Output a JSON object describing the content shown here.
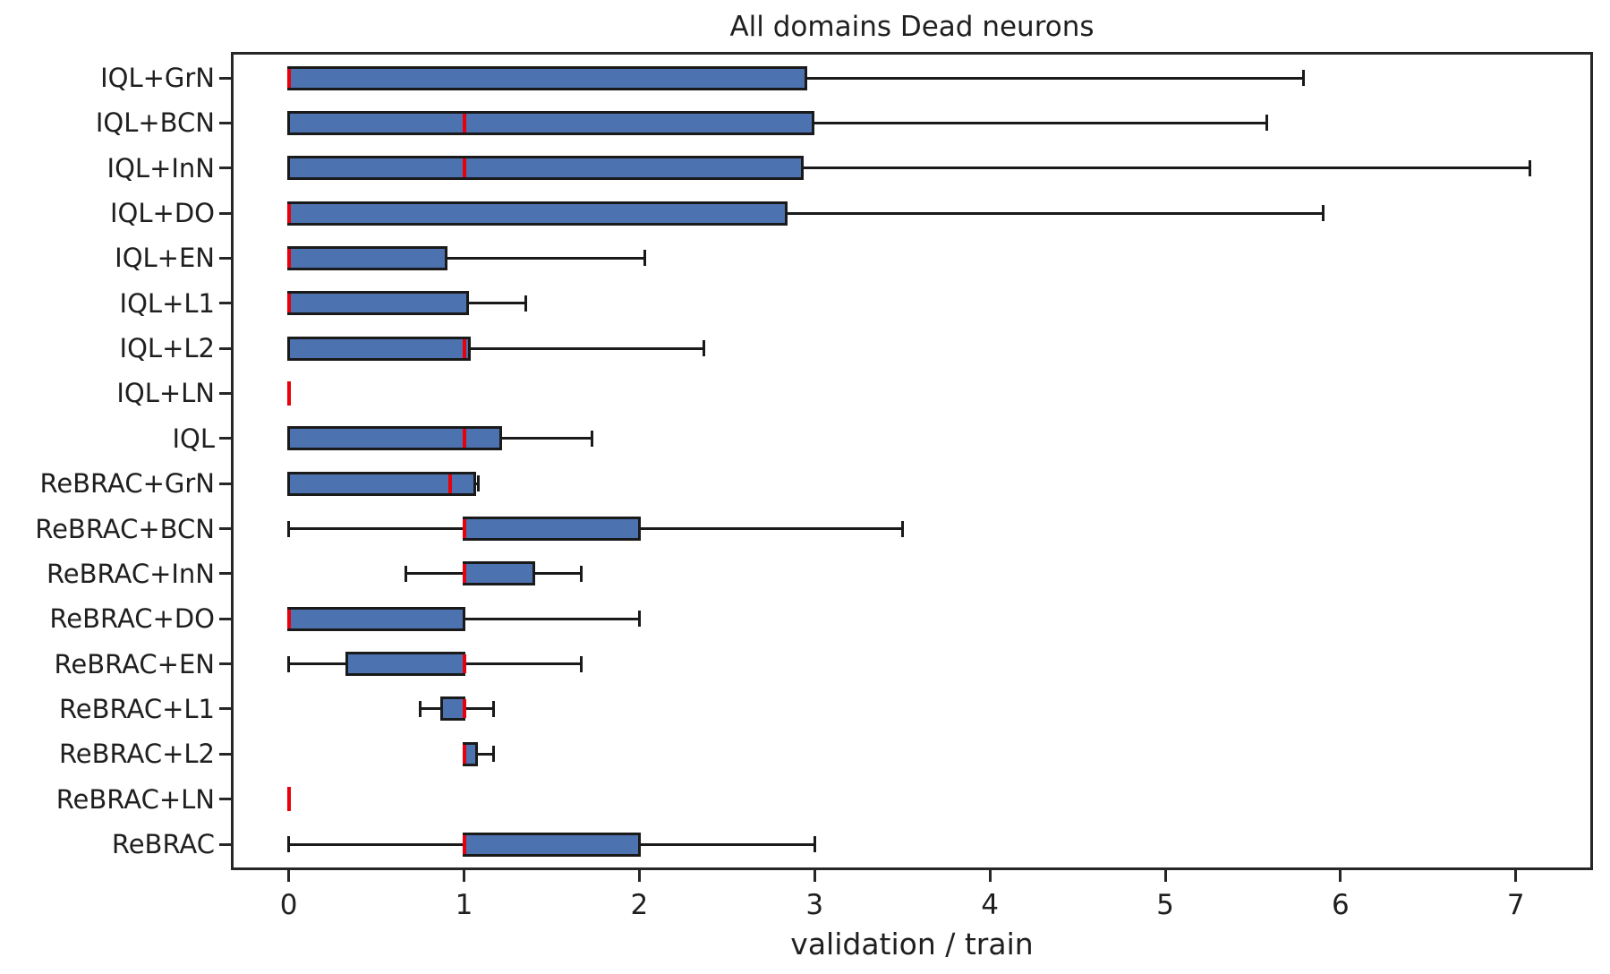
{
  "chart_data": {
    "type": "boxplot",
    "orientation": "horizontal",
    "title": "All domains Dead neurons",
    "xlabel": "validation / train",
    "ylabel": "",
    "xlim": [
      -0.33,
      7.44
    ],
    "xticks": [
      "0",
      "1",
      "2",
      "3",
      "4",
      "5",
      "6",
      "7"
    ],
    "xtick_values": [
      0,
      1,
      2,
      3,
      4,
      5,
      6,
      7
    ],
    "grid": false,
    "legend": "none",
    "box_fill_color": "#4C72B0",
    "median_color": "#e8000b",
    "edge_color": "#1a1a1a",
    "categories": [
      "IQL+GrN",
      "IQL+BCN",
      "IQL+InN",
      "IQL+DO",
      "IQL+EN",
      "IQL+L1",
      "IQL+L2",
      "IQL+LN",
      "IQL",
      "ReBRAC+GrN",
      "ReBRAC+BCN",
      "ReBRAC+InN",
      "ReBRAC+DO",
      "ReBRAC+EN",
      "ReBRAC+L1",
      "ReBRAC+L2",
      "ReBRAC+LN",
      "ReBRAC"
    ],
    "boxes": [
      {
        "label": "IQL+GrN",
        "whisker_low": 0,
        "q1": 0,
        "median": 0,
        "q3": 2.95,
        "whisker_high": 5.79
      },
      {
        "label": "IQL+BCN",
        "whisker_low": 0,
        "q1": 0,
        "median": 1.0,
        "q3": 2.99,
        "whisker_high": 5.58
      },
      {
        "label": "IQL+InN",
        "whisker_low": 0,
        "q1": 0,
        "median": 1.0,
        "q3": 2.93,
        "whisker_high": 7.08
      },
      {
        "label": "IQL+DO",
        "whisker_low": 0,
        "q1": 0,
        "median": 0,
        "q3": 2.84,
        "whisker_high": 5.9
      },
      {
        "label": "IQL+EN",
        "whisker_low": 0,
        "q1": 0,
        "median": 0,
        "q3": 0.9,
        "whisker_high": 2.03
      },
      {
        "label": "IQL+L1",
        "whisker_low": 0,
        "q1": 0,
        "median": 0,
        "q3": 1.02,
        "whisker_high": 1.35
      },
      {
        "label": "IQL+L2",
        "whisker_low": 0,
        "q1": 0,
        "median": 1.0,
        "q3": 1.03,
        "whisker_high": 2.37
      },
      {
        "label": "IQL+LN",
        "whisker_low": 0,
        "q1": 0,
        "median": 0,
        "q3": 0,
        "whisker_high": 0
      },
      {
        "label": "IQL",
        "whisker_low": 0,
        "q1": 0,
        "median": 1.0,
        "q3": 1.21,
        "whisker_high": 1.73
      },
      {
        "label": "ReBRAC+GrN",
        "whisker_low": 0,
        "q1": 0,
        "median": 0.92,
        "q3": 1.06,
        "whisker_high": 1.08
      },
      {
        "label": "ReBRAC+BCN",
        "whisker_low": 0,
        "q1": 1.0,
        "median": 1.0,
        "q3": 2.0,
        "whisker_high": 3.5
      },
      {
        "label": "ReBRAC+InN",
        "whisker_low": 0.67,
        "q1": 1.0,
        "median": 1.0,
        "q3": 1.4,
        "whisker_high": 1.67
      },
      {
        "label": "ReBRAC+DO",
        "whisker_low": 0,
        "q1": 0,
        "median": 0,
        "q3": 1.0,
        "whisker_high": 2.0
      },
      {
        "label": "ReBRAC+EN",
        "whisker_low": 0,
        "q1": 0.33,
        "median": 1.0,
        "q3": 1.0,
        "whisker_high": 1.67
      },
      {
        "label": "ReBRAC+L1",
        "whisker_low": 0.75,
        "q1": 0.87,
        "median": 1.0,
        "q3": 1.0,
        "whisker_high": 1.17
      },
      {
        "label": "ReBRAC+L2",
        "whisker_low": 1.0,
        "q1": 1.0,
        "median": 1.0,
        "q3": 1.07,
        "whisker_high": 1.17
      },
      {
        "label": "ReBRAC+LN",
        "whisker_low": 0,
        "q1": 0,
        "median": 0,
        "q3": 0,
        "whisker_high": 0
      },
      {
        "label": "ReBRAC",
        "whisker_low": 0,
        "q1": 1.0,
        "median": 1.0,
        "q3": 2.0,
        "whisker_high": 3.0
      }
    ]
  }
}
